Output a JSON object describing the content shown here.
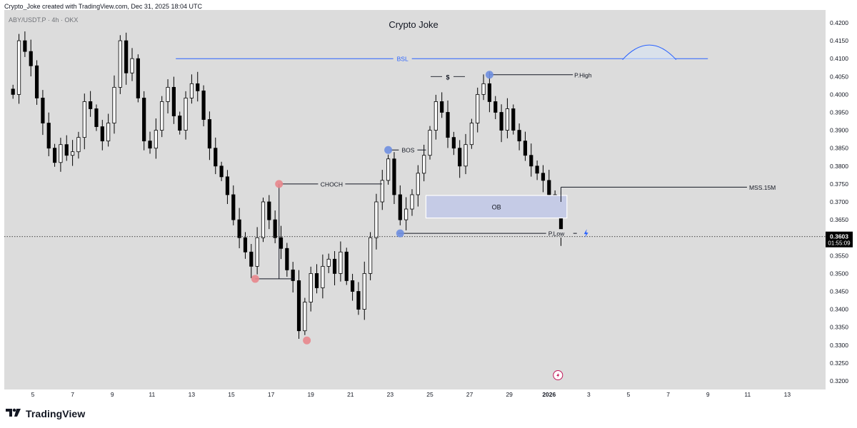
{
  "header": {
    "caption": "Crypto_Joke created with TradingView.com, Dec 31, 2025 18:04 UTC"
  },
  "footer": {
    "brand": "TradingView",
    "logo_icon": "tradingview-logo-icon"
  },
  "colors": {
    "background": "#dcdcdc",
    "candle": "#000000",
    "bsl_line": "#2962ff",
    "ob_fill": "#c5cbe6",
    "ob_stroke": "#ffffff",
    "red_marker": "#e8868c",
    "blue_marker": "#6f8fe0",
    "price_label_bg": "#000000",
    "price_label_fg": "#ffffff",
    "lightning": "#2962ff",
    "axis_text": "#131722"
  },
  "chart_data": {
    "type": "candlestick",
    "title": "Crypto Joke",
    "symbol": "ABY/USDT.P · 4h · OKX",
    "x_axis_labels": [
      "5",
      "7",
      "9",
      "11",
      "13",
      "15",
      "17",
      "19",
      "21",
      "23",
      "25",
      "27",
      "29",
      "2026",
      "3",
      "5",
      "7",
      "9",
      "11",
      "13"
    ],
    "y_axis_labels": [
      "0.4200",
      "0.4150",
      "0.4100",
      "0.4050",
      "0.4000",
      "0.3950",
      "0.3900",
      "0.3850",
      "0.3800",
      "0.3750",
      "0.3700",
      "0.3650",
      "0.3600",
      "0.3550",
      "0.3500",
      "0.3450",
      "0.3400",
      "0.3350",
      "0.3300",
      "0.3250",
      "0.3200"
    ],
    "ylim": [
      0.3195,
      0.4225
    ],
    "x_range_days": [
      4,
      14.5
    ],
    "current_price": "0.3603",
    "countdown": "01:55:09",
    "daily_closes": [
      [
        4.0,
        0.4
      ],
      [
        4.3,
        0.415
      ],
      [
        4.6,
        0.412
      ],
      [
        4.9,
        0.408
      ],
      [
        5.2,
        0.399
      ],
      [
        5.5,
        0.392
      ],
      [
        5.8,
        0.385
      ],
      [
        6.1,
        0.381
      ],
      [
        6.4,
        0.386
      ],
      [
        6.7,
        0.383
      ],
      [
        7.0,
        0.384
      ],
      [
        7.3,
        0.388
      ],
      [
        7.6,
        0.398
      ],
      [
        7.9,
        0.396
      ],
      [
        8.2,
        0.391
      ],
      [
        8.5,
        0.387
      ],
      [
        8.8,
        0.392
      ],
      [
        9.1,
        0.402
      ],
      [
        9.4,
        0.415
      ],
      [
        9.7,
        0.406
      ],
      [
        10.0,
        0.41
      ],
      [
        10.3,
        0.399
      ],
      [
        10.6,
        0.387
      ],
      [
        10.9,
        0.385
      ],
      [
        11.2,
        0.39
      ],
      [
        11.5,
        0.398
      ],
      [
        11.8,
        0.402
      ],
      [
        12.1,
        0.394
      ],
      [
        12.4,
        0.39
      ],
      [
        12.7,
        0.399
      ],
      [
        13.0,
        0.403
      ],
      [
        13.3,
        0.401
      ],
      [
        13.6,
        0.393
      ],
      [
        13.9,
        0.385
      ],
      [
        14.2,
        0.38
      ],
      [
        14.5,
        0.377
      ],
      [
        14.8,
        0.372
      ],
      [
        15.1,
        0.365
      ],
      [
        15.4,
        0.36
      ],
      [
        15.7,
        0.356
      ],
      [
        16.0,
        0.352
      ],
      [
        16.3,
        0.36
      ],
      [
        16.6,
        0.37
      ],
      [
        16.9,
        0.365
      ],
      [
        17.2,
        0.36
      ],
      [
        17.5,
        0.357
      ],
      [
        17.8,
        0.351
      ],
      [
        18.1,
        0.348
      ],
      [
        18.4,
        0.334
      ],
      [
        18.7,
        0.342
      ],
      [
        19.0,
        0.35
      ],
      [
        19.3,
        0.346
      ],
      [
        19.6,
        0.352
      ],
      [
        19.9,
        0.354
      ],
      [
        20.2,
        0.35
      ],
      [
        20.5,
        0.356
      ],
      [
        20.8,
        0.348
      ],
      [
        21.1,
        0.345
      ],
      [
        21.4,
        0.34
      ],
      [
        21.7,
        0.35
      ],
      [
        22.0,
        0.36
      ],
      [
        22.3,
        0.37
      ],
      [
        22.6,
        0.376
      ],
      [
        22.9,
        0.382
      ],
      [
        23.2,
        0.372
      ],
      [
        23.5,
        0.365
      ],
      [
        23.8,
        0.368
      ],
      [
        24.1,
        0.372
      ],
      [
        24.4,
        0.378
      ],
      [
        24.7,
        0.383
      ],
      [
        25.0,
        0.39
      ],
      [
        25.3,
        0.398
      ],
      [
        25.6,
        0.395
      ],
      [
        25.9,
        0.388
      ],
      [
        26.2,
        0.385
      ],
      [
        26.5,
        0.38
      ],
      [
        26.8,
        0.386
      ],
      [
        27.1,
        0.392
      ],
      [
        27.4,
        0.4
      ],
      [
        27.7,
        0.403
      ],
      [
        28.0,
        0.398
      ],
      [
        28.3,
        0.395
      ],
      [
        28.6,
        0.39
      ],
      [
        28.9,
        0.396
      ],
      [
        29.2,
        0.39
      ],
      [
        29.5,
        0.387
      ],
      [
        29.8,
        0.383
      ],
      [
        30.1,
        0.38
      ],
      [
        30.4,
        0.378
      ],
      [
        30.7,
        0.376
      ],
      [
        31.0,
        0.372
      ],
      [
        31.3,
        0.371
      ],
      [
        31.6,
        0.3603
      ]
    ],
    "annotations": [
      {
        "label": "BSL",
        "kind": "line",
        "price": 0.41,
        "x_from": 12.2,
        "x_to": 39.0,
        "color": "#2962ff",
        "arc": {
          "x_from": 34.7,
          "x_to": 37.4,
          "height": 0.0038
        }
      },
      {
        "label": "$",
        "kind": "text",
        "price": 0.4048,
        "x": 25.9
      },
      {
        "label": "P.High",
        "kind": "line",
        "price": 0.4055,
        "x_from": 28.0,
        "x_to": 32.2
      },
      {
        "label": "BOS",
        "kind": "line",
        "price": 0.3845,
        "x_from": 23.0,
        "x_to": 24.8
      },
      {
        "label": "CHOCH",
        "kind": "line",
        "price": 0.375,
        "x_from": 17.5,
        "x_to": 22.6
      },
      {
        "label": "MSS.15M",
        "kind": "line",
        "price": 0.3741,
        "x_from": 31.6,
        "x_to": 42.3
      },
      {
        "label": "OB",
        "kind": "zone",
        "price_top": 0.3718,
        "price_bottom": 0.3655,
        "x_from": 24.8,
        "x_to": 31.9
      },
      {
        "label": "P.Low",
        "kind": "line",
        "price": 0.3612,
        "x_from": 23.4,
        "x_to": 32.4
      }
    ],
    "markers": [
      {
        "kind": "red",
        "price": 0.375,
        "x": 17.4
      },
      {
        "kind": "red",
        "price": 0.3485,
        "x": 16.2
      },
      {
        "kind": "red",
        "price": 0.3313,
        "x": 18.8
      },
      {
        "kind": "blue",
        "price": 0.3845,
        "x": 22.9
      },
      {
        "kind": "blue",
        "price": 0.4055,
        "x": 28.0
      },
      {
        "kind": "blue",
        "price": 0.3612,
        "x": 23.5
      }
    ],
    "grid": false,
    "legend": "none"
  }
}
